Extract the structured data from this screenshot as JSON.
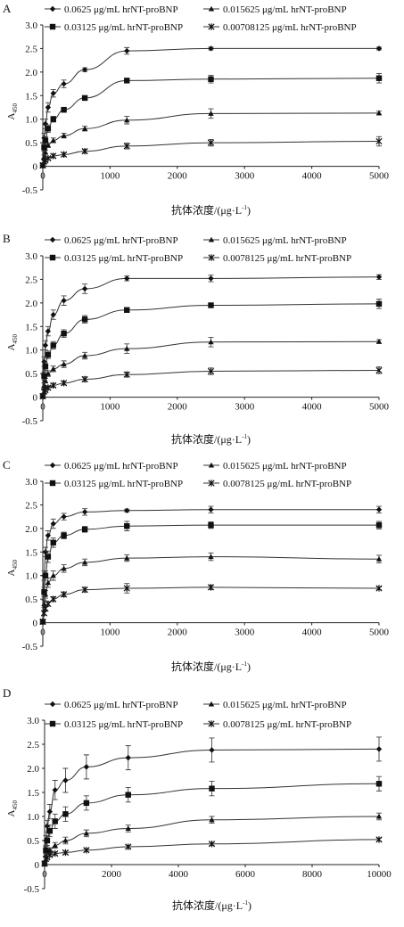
{
  "figure": {
    "y_axis_label": "A",
    "y_axis_label_sub": "450",
    "x_axis_label": "抗体浓度/(μg·L",
    "x_axis_label_sup": "-1",
    "x_axis_label_end": ")"
  },
  "chart_data": [
    {
      "panel": "A",
      "type": "line",
      "xlim": [
        0,
        5000
      ],
      "ylim": [
        -0.5,
        3.0
      ],
      "xticks": [
        0,
        1000,
        2000,
        3000,
        4000,
        5000
      ],
      "yticks": [
        -0.5,
        0,
        0.5,
        1.0,
        1.5,
        2.0,
        2.5,
        3.0
      ],
      "x": [
        0,
        20,
        39,
        78,
        156,
        313,
        625,
        1250,
        2500,
        5000
      ],
      "legend": [
        "0.0625 μg/mL hrNT-proBNP",
        "0.015625 μg/mL hrNT-proBNP",
        "0.03125 μg/mL hrNT-proBNP",
        "0.00708125 μg/mL hrNT-proBNP"
      ],
      "series": [
        {
          "name": "0.0625 μg/mL hrNT-proBNP",
          "marker": "diamond",
          "values": [
            0.02,
            0.6,
            0.9,
            1.25,
            1.55,
            1.75,
            2.05,
            2.45,
            2.5,
            2.5
          ],
          "err": [
            0.02,
            0.1,
            0.1,
            0.1,
            0.08,
            0.08,
            0.04,
            0.07,
            0.03,
            0.03
          ]
        },
        {
          "name": "0.015625 μg/mL hrNT-proBNP",
          "marker": "triangle",
          "values": [
            0.02,
            0.2,
            0.3,
            0.45,
            0.55,
            0.65,
            0.8,
            0.98,
            1.12,
            1.13
          ],
          "err": [
            0.02,
            0.04,
            0.04,
            0.05,
            0.05,
            0.05,
            0.05,
            0.08,
            0.1,
            0.04
          ]
        },
        {
          "name": "0.03125 μg/mL hrNT-proBNP",
          "marker": "square",
          "values": [
            0.02,
            0.4,
            0.55,
            0.8,
            1.0,
            1.2,
            1.45,
            1.82,
            1.85,
            1.87
          ],
          "err": [
            0.02,
            0.08,
            0.08,
            0.08,
            0.06,
            0.05,
            0.04,
            0.04,
            0.08,
            0.1
          ]
        },
        {
          "name": "0.00708125 μg/mL hrNT-proBNP",
          "marker": "star",
          "values": [
            0.02,
            0.1,
            0.13,
            0.17,
            0.22,
            0.25,
            0.32,
            0.43,
            0.5,
            0.53
          ],
          "err": [
            0.02,
            0.03,
            0.03,
            0.03,
            0.04,
            0.04,
            0.04,
            0.06,
            0.07,
            0.1
          ]
        }
      ]
    },
    {
      "panel": "B",
      "type": "line",
      "xlim": [
        0,
        5000
      ],
      "ylim": [
        -0.5,
        3.0
      ],
      "xticks": [
        0,
        1000,
        2000,
        3000,
        4000,
        5000
      ],
      "yticks": [
        -0.5,
        0,
        0.5,
        1.0,
        1.5,
        2.0,
        2.5,
        3.0
      ],
      "x": [
        0,
        20,
        39,
        78,
        156,
        313,
        625,
        1250,
        2500,
        5000
      ],
      "legend": [
        "0.0625 μg/mL hrNT-proBNP",
        "0.015625 μg/mL hrNT-proBNP",
        "0.03125 μg/mL hrNT-proBNP",
        "0.0078125 μg/mL hrNT-proBNP"
      ],
      "series": [
        {
          "name": "0.0625 μg/mL hrNT-proBNP",
          "marker": "diamond",
          "values": [
            0.02,
            0.75,
            1.1,
            1.4,
            1.75,
            2.05,
            2.3,
            2.52,
            2.52,
            2.55
          ],
          "err": [
            0.02,
            0.1,
            0.1,
            0.1,
            0.1,
            0.1,
            0.1,
            0.05,
            0.07,
            0.05
          ]
        },
        {
          "name": "0.015625 μg/mL hrNT-proBNP",
          "marker": "triangle",
          "values": [
            0.02,
            0.25,
            0.35,
            0.5,
            0.6,
            0.7,
            0.88,
            1.03,
            1.17,
            1.18
          ],
          "err": [
            0.02,
            0.05,
            0.05,
            0.06,
            0.06,
            0.07,
            0.07,
            0.1,
            0.1,
            0.04
          ]
        },
        {
          "name": "0.03125 μg/mL hrNT-proBNP",
          "marker": "square",
          "values": [
            0.02,
            0.45,
            0.65,
            0.9,
            1.1,
            1.35,
            1.65,
            1.85,
            1.95,
            1.98
          ],
          "err": [
            0.02,
            0.08,
            0.08,
            0.08,
            0.08,
            0.08,
            0.08,
            0.05,
            0.04,
            0.1
          ]
        },
        {
          "name": "0.0078125 μg/mL hrNT-proBNP",
          "marker": "star",
          "values": [
            0.02,
            0.12,
            0.15,
            0.2,
            0.25,
            0.3,
            0.38,
            0.48,
            0.55,
            0.57
          ],
          "err": [
            0.02,
            0.03,
            0.03,
            0.04,
            0.04,
            0.04,
            0.05,
            0.05,
            0.07,
            0.07
          ]
        }
      ]
    },
    {
      "panel": "C",
      "type": "line",
      "xlim": [
        0,
        5000
      ],
      "ylim": [
        -0.5,
        3.0
      ],
      "xticks": [
        0,
        1000,
        2000,
        3000,
        4000,
        5000
      ],
      "yticks": [
        -0.5,
        0,
        0.5,
        1.0,
        1.5,
        2.0,
        2.5,
        3.0
      ],
      "x": [
        0,
        20,
        39,
        78,
        156,
        313,
        625,
        1250,
        2500,
        5000
      ],
      "legend": [
        "0.0625 μg/mL hrNT-proBNP",
        "0.015625 μg/mL hrNT-proBNP",
        "0.03125 μg/mL hrNT-proBNP",
        "0.0078125 μg/mL hrNT-proBNP"
      ],
      "series": [
        {
          "name": "0.0625 μg/mL hrNT-proBNP",
          "marker": "diamond",
          "values": [
            0.02,
            1.0,
            1.5,
            1.85,
            2.1,
            2.25,
            2.35,
            2.38,
            2.4,
            2.4
          ],
          "err": [
            0.02,
            0.1,
            0.1,
            0.1,
            0.1,
            0.07,
            0.07,
            0.03,
            0.07,
            0.07
          ]
        },
        {
          "name": "0.015625 μg/mL hrNT-proBNP",
          "marker": "triangle",
          "values": [
            0.02,
            0.4,
            0.6,
            0.85,
            1.0,
            1.15,
            1.28,
            1.37,
            1.4,
            1.35
          ],
          "err": [
            0.02,
            0.08,
            0.08,
            0.1,
            0.1,
            0.08,
            0.07,
            0.07,
            0.08,
            0.08
          ]
        },
        {
          "name": "0.03125 μg/mL hrNT-proBNP",
          "marker": "square",
          "values": [
            0.02,
            0.65,
            1.0,
            1.4,
            1.7,
            1.85,
            1.98,
            2.05,
            2.07,
            2.07
          ],
          "err": [
            0.02,
            0.1,
            0.1,
            0.12,
            0.1,
            0.07,
            0.06,
            0.1,
            0.07,
            0.08
          ]
        },
        {
          "name": "0.0078125 μg/mL hrNT-proBNP",
          "marker": "star",
          "values": [
            0.02,
            0.2,
            0.3,
            0.4,
            0.5,
            0.6,
            0.7,
            0.73,
            0.75,
            0.73
          ],
          "err": [
            0.02,
            0.04,
            0.04,
            0.05,
            0.05,
            0.05,
            0.05,
            0.1,
            0.05,
            0.03
          ]
        }
      ]
    },
    {
      "panel": "D",
      "type": "line",
      "xlim": [
        0,
        10000
      ],
      "ylim": [
        -0.5,
        3.0
      ],
      "xticks": [
        0,
        2000,
        4000,
        6000,
        8000,
        10000
      ],
      "yticks": [
        -0.5,
        0,
        0.5,
        1.0,
        1.5,
        2.0,
        2.5,
        3.0
      ],
      "x": [
        0,
        39,
        78,
        156,
        313,
        625,
        1250,
        2500,
        5000,
        10000
      ],
      "legend": [
        "0.0625 μg/mL hrNT-proBNP",
        "0.015625 μg/mL hrNT-proBNP",
        "0.03125 μg/mL hrNT-proBNP",
        "0.0078125 μg/mL hrNT-proBNP"
      ],
      "series": [
        {
          "name": "0.0625 μg/mL hrNT-proBNP",
          "marker": "diamond",
          "values": [
            0.02,
            0.5,
            0.8,
            1.1,
            1.55,
            1.75,
            2.03,
            2.22,
            2.38,
            2.4
          ],
          "err": [
            0.02,
            0.1,
            0.12,
            0.15,
            0.2,
            0.25,
            0.25,
            0.25,
            0.25,
            0.25
          ]
        },
        {
          "name": "0.015625 μg/mL hrNT-proBNP",
          "marker": "triangle",
          "values": [
            0.02,
            0.2,
            0.25,
            0.3,
            0.4,
            0.5,
            0.65,
            0.75,
            0.93,
            1.0
          ],
          "err": [
            0.02,
            0.04,
            0.04,
            0.05,
            0.06,
            0.07,
            0.07,
            0.07,
            0.07,
            0.07
          ]
        },
        {
          "name": "0.03125 μg/mL hrNT-proBNP",
          "marker": "square",
          "values": [
            0.02,
            0.3,
            0.5,
            0.7,
            0.9,
            1.05,
            1.28,
            1.45,
            1.58,
            1.68
          ],
          "err": [
            0.02,
            0.08,
            0.1,
            0.12,
            0.15,
            0.15,
            0.15,
            0.15,
            0.15,
            0.15
          ]
        },
        {
          "name": "0.0078125 μg/mL hrNT-proBNP",
          "marker": "star",
          "values": [
            0.02,
            0.12,
            0.15,
            0.2,
            0.23,
            0.25,
            0.3,
            0.37,
            0.43,
            0.52
          ],
          "err": [
            0.02,
            0.03,
            0.03,
            0.03,
            0.03,
            0.03,
            0.03,
            0.03,
            0.03,
            0.03
          ]
        }
      ]
    }
  ]
}
